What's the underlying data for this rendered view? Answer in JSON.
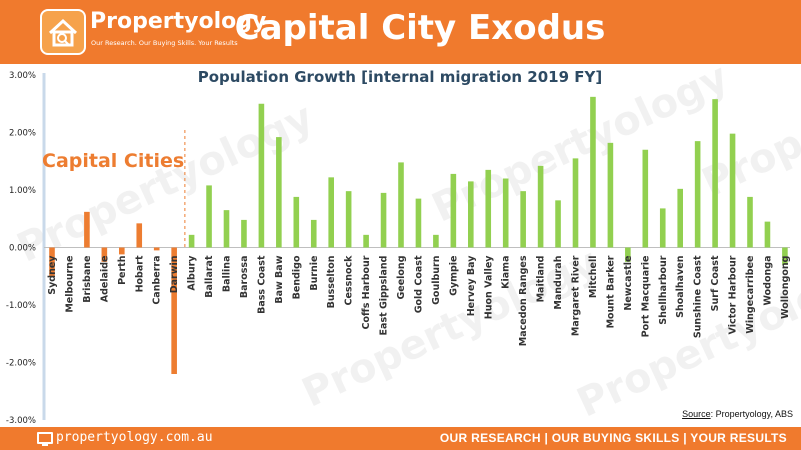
{
  "header": {
    "logo_name": "Propertyology",
    "logo_tagline": "Our Research. Our Buying Skills. Your Results",
    "title": "Capital City Exodus"
  },
  "annotation": {
    "capital_cities": "Capital Cities"
  },
  "source": {
    "label": "Source",
    "text": ": Propertyology, ABS"
  },
  "watermark_text": "Propertyology",
  "footer": {
    "site": "propertyology.com.au",
    "slogan": "OUR RESEARCH | OUR BUYING SKILLS | YOUR RESULTS"
  },
  "colors": {
    "brand_orange": "#f07a2d",
    "capital_bar": "#ed7d31",
    "regional_bar": "#92d050"
  },
  "chart_data": {
    "type": "bar",
    "title": "Population Growth [internal migration 2019 FY]",
    "ylim": [
      -0.03,
      0.03
    ],
    "yticks": [
      -0.03,
      -0.02,
      -0.01,
      0,
      0.01,
      0.02,
      0.03
    ],
    "ytick_labels": [
      "-3.00%",
      "-2.00%",
      "-1.00%",
      "0.00%",
      "1.00%",
      "2.00%",
      "3.00%"
    ],
    "grid": false,
    "categories": [
      "Sydney",
      "Melbourne",
      "Brisbane",
      "Adelaide",
      "Perth",
      "Hobart",
      "Canberra",
      "Darwin",
      "Albury",
      "Ballarat",
      "Ballina",
      "Barossa",
      "Bass Coast",
      "Baw Baw",
      "Bendigo",
      "Burnie",
      "Busselton",
      "Cessnock",
      "Coffs Harbour",
      "East Gippsland",
      "Geelong",
      "Gold Coast",
      "Goulburn",
      "Gympie",
      "Hervey Bay",
      "Huon Valley",
      "Kiama",
      "Macedon Ranges",
      "Maitland",
      "Mandurah",
      "Margaret River",
      "Mitchell",
      "Mount Barker",
      "Newcastle",
      "Port Macquarie",
      "Shellharbour",
      "Shoalhaven",
      "Sunshine Coast",
      "Surf Coast",
      "Victor Harbour",
      "Wingecarribee",
      "Wodonga",
      "Wollongong"
    ],
    "values": [
      -0.005,
      0,
      0.0062,
      -0.0025,
      -0.0012,
      0.0042,
      -0.0005,
      -0.022,
      0.0022,
      0.0108,
      0.0065,
      0.0048,
      0.025,
      0.0192,
      0.0088,
      0.0048,
      0.0122,
      0.0098,
      0.0022,
      0.0095,
      0.0148,
      0.0085,
      0.0022,
      0.0128,
      0.0115,
      0.0135,
      0.012,
      0.0098,
      0.0142,
      0.0082,
      0.0155,
      0.0262,
      0.0182,
      -0.0025,
      0.017,
      0.0068,
      0.0102,
      0.0185,
      0.0258,
      0.0198,
      0.0088,
      0.0045,
      -0.003
    ],
    "capital_count": 8
  }
}
